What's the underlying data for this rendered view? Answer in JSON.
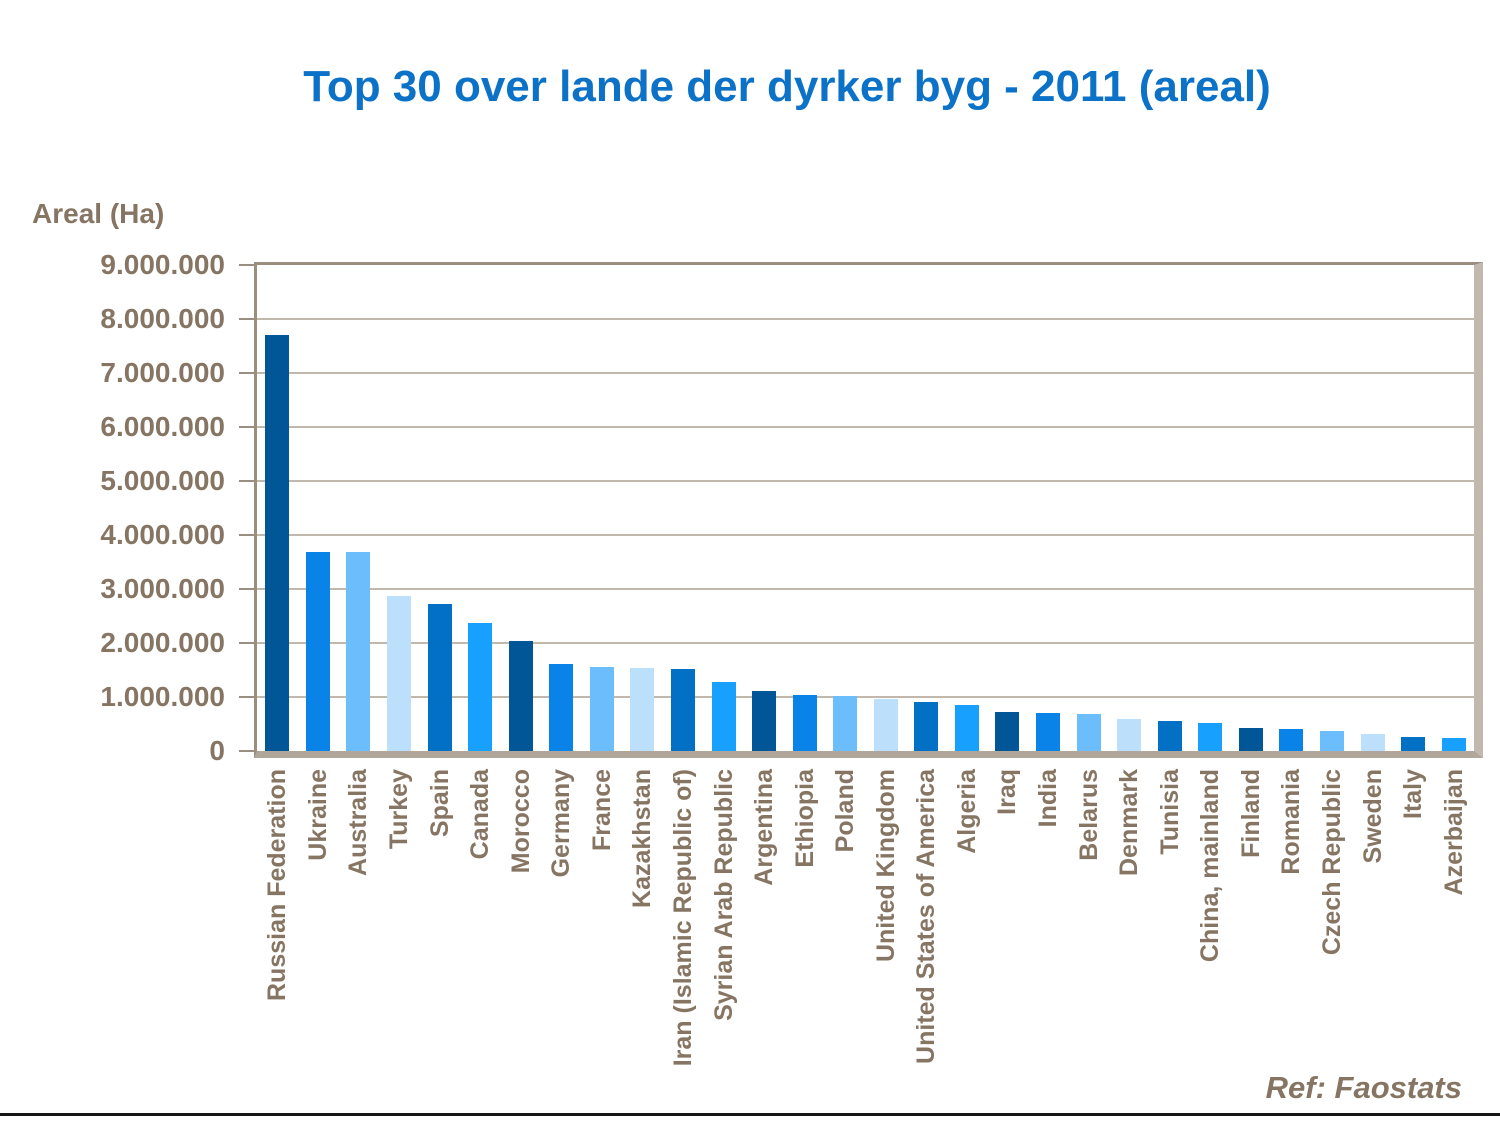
{
  "header": {
    "title": "Top 30 over lande der dyrker byg - 2011 (areal)",
    "title_color": "#0B72C8"
  },
  "footer": {
    "ref_note": "Ref: Faostats",
    "rule_color": "#161616"
  },
  "axis_style": {
    "text_color": "#877563",
    "grid_color": "#C1B7AA",
    "frame_dark": "#9A8E81",
    "frame_light": "#C2B9AE",
    "axis_band": "#B0A699"
  },
  "chart_data": {
    "type": "bar",
    "title": "Top 30 over lande der dyrker byg - 2011 (areal)",
    "ylabel": "Areal (Ha)",
    "xlabel": "",
    "ylim": [
      0,
      9000000
    ],
    "ytick_interval": 1000000,
    "ytick_labels": [
      "0",
      "1.000.000",
      "2.000.000",
      "3.000.000",
      "4.000.000",
      "5.000.000",
      "6.000.000",
      "7.000.000",
      "8.000.000",
      "9.000.000"
    ],
    "grid": "horizontal",
    "legend": false,
    "annotation": "Ref: Faostats",
    "categories": [
      "Russian Federation",
      "Ukraine",
      "Australia",
      "Turkey",
      "Spain",
      "Canada",
      "Morocco",
      "Germany",
      "France",
      "Kazakhstan",
      "Iran (Islamic Republic of)",
      "Syrian Arab Republic",
      "Argentina",
      "Ethiopia",
      "Poland",
      "United Kingdom",
      "United States of America",
      "Algeria",
      "Iraq",
      "India",
      "Belarus",
      "Denmark",
      "Tunisia",
      "China, mainland",
      "Finland",
      "Romania",
      "Czech Republic",
      "Sweden",
      "Italy",
      "Azerbaijan"
    ],
    "values": [
      7700000,
      3690000,
      3680000,
      2870000,
      2715000,
      2365000,
      2030000,
      1620000,
      1555000,
      1530000,
      1520000,
      1285000,
      1110000,
      1045000,
      1015000,
      970000,
      900000,
      850000,
      730000,
      700000,
      685000,
      595000,
      555000,
      515000,
      430000,
      400000,
      370000,
      315000,
      255000,
      250000
    ],
    "bar_color_cycle": [
      "#015697",
      "#0983E7",
      "#6CBDFC",
      "#BCDFFC",
      "#0270C4",
      "#18A0FF"
    ]
  }
}
